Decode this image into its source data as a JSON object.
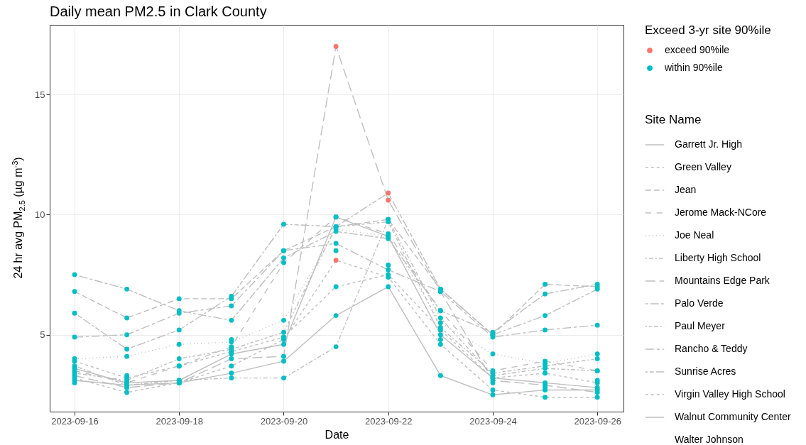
{
  "chart_data": {
    "type": "line",
    "title": "Daily mean PM2.5 in Clark County",
    "xlabel": "Date",
    "ylabel": "24 hr avg PM$_{2.5}$ (µg m$^{-3}$)",
    "legend_title": "Exceed 3-yr site 90%ile",
    "annotations": [
      "Site Name"
    ],
    "x": [
      "2023-09-16",
      "2023-09-17",
      "2023-09-18",
      "2023-09-19",
      "2023-09-20",
      "2023-09-21",
      "2023-09-22",
      "2023-09-23",
      "2023-09-24",
      "2023-09-25",
      "2023-09-26"
    ],
    "xlim": [
      "2023-09-15T12:35",
      "2023-09-26T12:00"
    ],
    "xticks": [
      "2023-09-16",
      "2023-09-18",
      "2023-09-20",
      "2023-09-22",
      "2023-09-24",
      "2023-09-26"
    ],
    "ylim": [
      1.8,
      17.9
    ],
    "yticks": [
      5,
      10,
      15
    ],
    "grid": true,
    "legend": "right",
    "series": [
      {
        "name": "Garrett Jr. High",
        "color": "#bebebe",
        "line_style": "solid",
        "values": [
          3.1,
          2.9,
          3.0,
          3.4,
          3.9,
          5.8,
          7.0,
          3.3,
          2.5,
          2.7,
          2.7
        ]
      },
      {
        "name": "Green Valley",
        "color": "#bebebe",
        "line_style": "dashed",
        "values": [
          3.9,
          3.2,
          3.7,
          4.3,
          4.9,
          7.0,
          7.5,
          5.2,
          3.2,
          3.4,
          3.0
        ]
      },
      {
        "name": "Jean",
        "color": "#bebebe",
        "line_style": "dashed",
        "values": [
          6.8,
          5.7,
          6.5,
          6.5,
          8.5,
          9.5,
          9.8,
          6.9,
          5.0,
          7.1,
          7.0
        ]
      },
      {
        "name": "Jerome Mack-NCore",
        "color": "#bebebe",
        "line_style": "dashed",
        "values": [
          3.5,
          3.0,
          3.7,
          4.5,
          8.0,
          9.9,
          9.2,
          6.0,
          3.5,
          3.9,
          3.5
        ]
      },
      {
        "name": "Joe Neal",
        "color": "#bebebe",
        "line_style": "dotted",
        "values": [
          4.0,
          4.1,
          4.6,
          4.7,
          5.6,
          9.4,
          9.1,
          5.5,
          4.2,
          3.8,
          4.2
        ]
      },
      {
        "name": "Liberty High School",
        "color": "#bebebe",
        "line_style": "dashed",
        "values": [
          3.7,
          2.9,
          3.1,
          3.2,
          3.2,
          4.5,
          9.8,
          5.7,
          3.3,
          3.6,
          3.5
        ]
      },
      {
        "name": "Mountains Edge Park",
        "color": "#bebebe",
        "line_style": "dashed",
        "values": [
          3.3,
          2.8,
          3.0,
          4.0,
          4.1,
          17.0,
          10.6,
          6.8,
          3.1,
          2.9,
          2.6
        ]
      },
      {
        "name": "Palo Verde",
        "color": "#bebebe",
        "line_style": "dashed",
        "values": [
          7.5,
          6.9,
          6.0,
          5.6,
          8.2,
          9.3,
          9.0,
          6.0,
          5.1,
          6.7,
          7.1
        ]
      },
      {
        "name": "Paul Meyer",
        "color": "#bebebe",
        "line_style": "dashed",
        "values": [
          3.4,
          3.1,
          4.0,
          4.4,
          5.1,
          9.5,
          9.7,
          5.3,
          3.4,
          3.7,
          4.0
        ]
      },
      {
        "name": "Rancho & Teddy",
        "color": "#bebebe",
        "line_style": "dashed",
        "values": [
          4.9,
          5.0,
          5.9,
          6.2,
          8.5,
          8.8,
          7.7,
          6.8,
          4.9,
          5.2,
          5.4
        ]
      },
      {
        "name": "Sunrise Acres",
        "color": "#bebebe",
        "line_style": "dashed",
        "values": [
          5.9,
          4.4,
          5.2,
          6.6,
          9.6,
          9.5,
          10.9,
          6.9,
          5.0,
          5.8,
          6.9
        ]
      },
      {
        "name": "Virgin Valley High School",
        "color": "#bebebe",
        "line_style": "dashed",
        "values": [
          3.2,
          2.6,
          3.0,
          3.7,
          4.8,
          8.1,
          7.4,
          4.6,
          2.7,
          2.4,
          2.4
        ]
      },
      {
        "name": "Walnut Community Center",
        "color": "#bebebe",
        "line_style": "solid",
        "values": [
          3.6,
          3.0,
          3.1,
          4.2,
          4.6,
          9.9,
          9.1,
          5.0,
          3.2,
          3.0,
          2.8
        ]
      },
      {
        "name": "Walter Johnson",
        "line_style": "none",
        "values": [
          null,
          null,
          null,
          null,
          null,
          null,
          null,
          null,
          null,
          null,
          null
        ]
      },
      {
        "name": "exceed 90%ile",
        "type": "scatter",
        "marker": "circle",
        "color": "#f8766d",
        "x": [
          "2023-09-21",
          "2023-09-21",
          "2023-09-22",
          "2023-09-22"
        ],
        "values": [
          17.0,
          8.1,
          10.6,
          10.9
        ]
      },
      {
        "name": "within 90%ile",
        "type": "scatter",
        "marker": "circle",
        "color": "#00bfc4",
        "x": [
          "2023-09-16",
          "2023-09-16",
          "2023-09-16",
          "2023-09-16",
          "2023-09-16",
          "2023-09-16",
          "2023-09-16",
          "2023-09-16",
          "2023-09-16",
          "2023-09-16",
          "2023-09-16",
          "2023-09-16",
          "2023-09-16",
          "2023-09-16",
          "2023-09-17",
          "2023-09-17",
          "2023-09-17",
          "2023-09-17",
          "2023-09-17",
          "2023-09-17",
          "2023-09-17",
          "2023-09-17",
          "2023-09-17",
          "2023-09-17",
          "2023-09-17",
          "2023-09-17",
          "2023-09-17",
          "2023-09-17",
          "2023-09-18",
          "2023-09-18",
          "2023-09-18",
          "2023-09-18",
          "2023-09-18",
          "2023-09-18",
          "2023-09-18",
          "2023-09-18",
          "2023-09-18",
          "2023-09-18",
          "2023-09-18",
          "2023-09-18",
          "2023-09-18",
          "2023-09-18",
          "2023-09-19",
          "2023-09-19",
          "2023-09-19",
          "2023-09-19",
          "2023-09-19",
          "2023-09-19",
          "2023-09-19",
          "2023-09-19",
          "2023-09-19",
          "2023-09-19",
          "2023-09-19",
          "2023-09-19",
          "2023-09-19",
          "2023-09-19",
          "2023-09-20",
          "2023-09-20",
          "2023-09-20",
          "2023-09-20",
          "2023-09-20",
          "2023-09-20",
          "2023-09-20",
          "2023-09-20",
          "2023-09-20",
          "2023-09-20",
          "2023-09-20",
          "2023-09-20",
          "2023-09-20",
          "2023-09-20",
          "2023-09-21",
          "2023-09-21",
          "2023-09-21",
          "2023-09-21",
          "2023-09-21",
          "2023-09-21",
          "2023-09-21",
          "2023-09-21",
          "2023-09-21",
          "2023-09-21",
          "2023-09-21",
          "2023-09-21",
          "2023-09-22",
          "2023-09-22",
          "2023-09-22",
          "2023-09-22",
          "2023-09-22",
          "2023-09-22",
          "2023-09-22",
          "2023-09-22",
          "2023-09-22",
          "2023-09-22",
          "2023-09-22",
          "2023-09-22",
          "2023-09-23",
          "2023-09-23",
          "2023-09-23",
          "2023-09-23",
          "2023-09-23",
          "2023-09-23",
          "2023-09-23",
          "2023-09-23",
          "2023-09-23",
          "2023-09-23",
          "2023-09-23",
          "2023-09-23",
          "2023-09-23",
          "2023-09-23",
          "2023-09-24",
          "2023-09-24",
          "2023-09-24",
          "2023-09-24",
          "2023-09-24",
          "2023-09-24",
          "2023-09-24",
          "2023-09-24",
          "2023-09-24",
          "2023-09-24",
          "2023-09-24",
          "2023-09-24",
          "2023-09-24",
          "2023-09-24",
          "2023-09-25",
          "2023-09-25",
          "2023-09-25",
          "2023-09-25",
          "2023-09-25",
          "2023-09-25",
          "2023-09-25",
          "2023-09-25",
          "2023-09-25",
          "2023-09-25",
          "2023-09-25",
          "2023-09-25",
          "2023-09-25",
          "2023-09-25",
          "2023-09-26",
          "2023-09-26",
          "2023-09-26",
          "2023-09-26",
          "2023-09-26",
          "2023-09-26",
          "2023-09-26",
          "2023-09-26",
          "2023-09-26",
          "2023-09-26",
          "2023-09-26",
          "2023-09-26",
          "2023-09-26",
          "2023-09-26"
        ],
        "values": [
          3.1,
          3.9,
          6.8,
          3.5,
          4.0,
          3.7,
          3.3,
          7.5,
          3.4,
          4.9,
          5.9,
          3.2,
          3.6,
          3.0,
          2.9,
          3.2,
          5.7,
          3.0,
          4.1,
          2.9,
          2.8,
          6.9,
          3.1,
          5.0,
          4.4,
          2.6,
          3.0,
          3.3,
          3.0,
          3.7,
          6.5,
          3.7,
          4.6,
          3.1,
          3.0,
          6.0,
          4.0,
          5.9,
          5.2,
          3.0,
          3.1,
          3.7,
          3.4,
          4.3,
          6.5,
          4.5,
          4.7,
          3.2,
          4.0,
          5.6,
          4.4,
          6.2,
          6.6,
          3.7,
          4.2,
          4.8,
          3.9,
          4.9,
          8.5,
          8.0,
          5.6,
          3.2,
          4.1,
          8.2,
          5.1,
          8.5,
          9.6,
          4.8,
          4.6,
          4.9,
          5.8,
          7.0,
          9.5,
          9.9,
          9.4,
          4.5,
          9.3,
          9.5,
          8.8,
          9.5,
          9.9,
          8.5,
          7.0,
          7.5,
          9.8,
          9.2,
          9.1,
          9.8,
          9.0,
          9.7,
          7.7,
          7.4,
          9.1,
          7.9,
          3.3,
          5.2,
          6.9,
          6.0,
          5.5,
          5.7,
          6.8,
          6.0,
          5.3,
          6.8,
          6.9,
          4.6,
          5.0,
          4.8,
          2.5,
          3.2,
          5.0,
          3.5,
          4.2,
          3.3,
          3.1,
          5.1,
          3.4,
          4.9,
          5.0,
          2.7,
          3.2,
          3.0,
          2.7,
          3.4,
          7.1,
          3.9,
          3.8,
          3.6,
          2.9,
          6.7,
          3.7,
          5.2,
          5.8,
          2.4,
          3.0,
          2.8,
          2.7,
          3.0,
          7.0,
          3.5,
          4.2,
          3.5,
          2.6,
          7.1,
          4.0,
          5.4,
          6.9,
          2.4,
          2.8,
          3.1
        ]
      }
    ]
  }
}
